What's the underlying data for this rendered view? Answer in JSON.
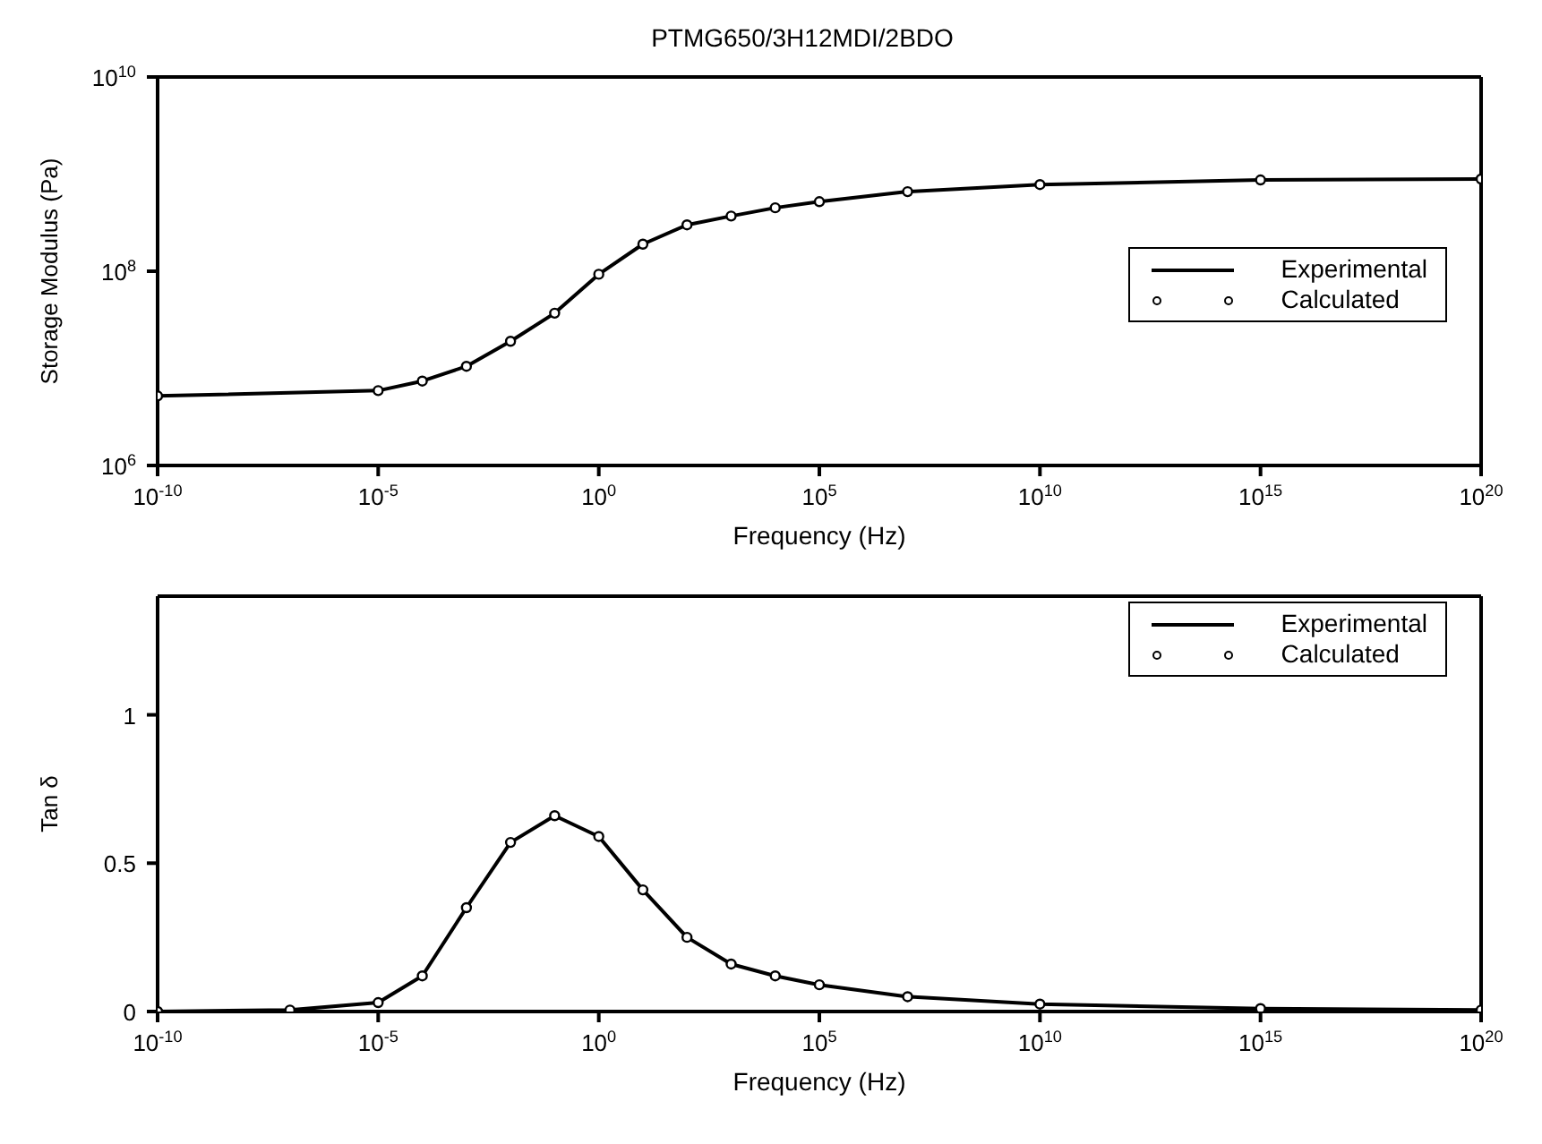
{
  "chart_data": [
    {
      "type": "line",
      "title": "PTMG650/3H12MDI/2BDO",
      "xlabel": "Frequency (Hz)",
      "ylabel": "Storage Modulus (Pa)",
      "log": "xy",
      "legend": "right",
      "x": [
        1e-10,
        1e-05,
        0.0001,
        0.001,
        0.01,
        0.1,
        1,
        10,
        100,
        1000.0,
        10000.0,
        100000.0,
        10000000.0,
        10000000000.0,
        1000000000000000.0,
        1e+20
      ],
      "series": [
        {
          "name": "Experimental",
          "color": "#000000",
          "line_style": "solid",
          "marker": "none",
          "values": [
            5200000.0,
            5900000.0,
            7400000.0,
            10500000.0,
            19000000.0,
            37000000.0,
            93000000.0,
            190000000.0,
            300000000.0,
            370000000.0,
            450000000.0,
            520000000.0,
            660000000.0,
            780000000.0,
            870000000.0,
            890000000.0
          ]
        },
        {
          "name": "Calculated",
          "type": "scatter",
          "marker": "circle",
          "color": "#000000",
          "values": [
            5200000.0,
            5900000.0,
            7400000.0,
            10500000.0,
            19000000.0,
            37000000.0,
            93000000.0,
            190000000.0,
            300000000.0,
            370000000.0,
            450000000.0,
            520000000.0,
            660000000.0,
            780000000.0,
            870000000.0,
            890000000.0
          ]
        }
      ],
      "xlim": [
        1e-10,
        1e+20
      ],
      "xticks": [
        {
          "value": 1e-10,
          "label": "10$^{-10}$"
        },
        {
          "value": 1e-05,
          "label": "10$^{-5}$"
        },
        {
          "value": 1,
          "label": "10$^{0}$"
        },
        {
          "value": 100000.0,
          "label": "10$^{5}$"
        },
        {
          "value": 10000000000.0,
          "label": "10$^{10}$"
        },
        {
          "value": 1000000000000000.0,
          "label": "10$^{15}$"
        },
        {
          "value": 1e+20,
          "label": "10$^{20}$"
        }
      ],
      "ylim": [
        1000000.0,
        10000000000.0
      ],
      "yticks": [
        {
          "value": 1000000.0,
          "label": "10$^{6}$"
        },
        {
          "value": 100000000.0,
          "label": "10$^{8}$"
        },
        {
          "value": 10000000000.0,
          "label": "10$^{10}$"
        }
      ]
    },
    {
      "type": "line",
      "xlabel": "Frequency (Hz)",
      "ylabel": "Tan δ",
      "log": "x",
      "legend": "top right",
      "x": [
        1e-10,
        1e-07,
        1e-05,
        0.0001,
        0.001,
        0.01,
        0.1,
        1,
        10,
        100,
        1000.0,
        10000.0,
        100000.0,
        10000000.0,
        10000000000.0,
        1000000000000000.0,
        1e+20
      ],
      "series": [
        {
          "name": "Experimental",
          "color": "#000000",
          "line_style": "solid",
          "marker": "none",
          "values": [
            0,
            0.005,
            0.03,
            0.12,
            0.35,
            0.57,
            0.66,
            0.59,
            0.41,
            0.25,
            0.16,
            0.12,
            0.09,
            0.05,
            0.025,
            0.01,
            0.005
          ]
        },
        {
          "name": "Calculated",
          "type": "scatter",
          "marker": "circle",
          "color": "#000000",
          "values": [
            0,
            0.005,
            0.03,
            0.12,
            0.35,
            0.57,
            0.66,
            0.59,
            0.41,
            0.25,
            0.16,
            0.12,
            0.09,
            0.05,
            0.025,
            0.01,
            0.005
          ]
        }
      ],
      "xlim": [
        1e-10,
        1e+20
      ],
      "xticks": [
        {
          "value": 1e-10,
          "label": "10$^{-10}$"
        },
        {
          "value": 1e-05,
          "label": "10$^{-5}$"
        },
        {
          "value": 1,
          "label": "10$^{0}$"
        },
        {
          "value": 100000.0,
          "label": "10$^{5}$"
        },
        {
          "value": 10000000000.0,
          "label": "10$^{10}$"
        },
        {
          "value": 1000000000000000.0,
          "label": "10$^{15}$"
        },
        {
          "value": 1e+20,
          "label": "10$^{20}$"
        }
      ],
      "ylim": [
        0,
        1.4
      ],
      "yticks": [
        0,
        0.5,
        1
      ]
    }
  ]
}
